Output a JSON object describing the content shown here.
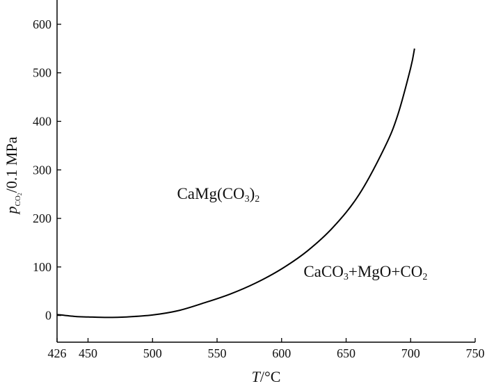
{
  "chart_data": {
    "type": "line",
    "xlabel": {
      "italic": "T",
      "rest": "/°C"
    },
    "ylabel": {
      "italic": "p",
      "subscript_main": "CO",
      "subscript_sub": "2",
      "rest": "/0.1 MPa"
    },
    "xlim": [
      426,
      750
    ],
    "ylim": [
      -55,
      650
    ],
    "x_ticks": [
      426,
      450,
      500,
      550,
      600,
      650,
      700,
      750
    ],
    "y_ticks": [
      0,
      100,
      200,
      300,
      400,
      500,
      600
    ],
    "grid": false,
    "series": [
      {
        "color": "#000000",
        "x": [
          426,
          440,
          450,
          465,
          480,
          500,
          520,
          540,
          560,
          580,
          600,
          620,
          640,
          660,
          680,
          690,
          700,
          703
        ],
        "y": [
          2,
          -2,
          -3,
          -4,
          -3,
          1,
          10,
          26,
          44,
          67,
          96,
          133,
          182,
          249,
          347,
          413,
          510,
          550
        ]
      }
    ],
    "annotations": [
      {
        "id": "dolomite",
        "base": "CaMg(CO",
        "sub": "3",
        "close": ")",
        "sub2": "2",
        "x": 551,
        "y": 240
      },
      {
        "id": "products",
        "parts": [
          {
            "t": "CaCO",
            "sub": false
          },
          {
            "t": "3",
            "sub": true
          },
          {
            "t": "+MgO+CO",
            "sub": false
          },
          {
            "t": "2",
            "sub": true
          }
        ],
        "x": 665,
        "y": 80
      }
    ]
  }
}
